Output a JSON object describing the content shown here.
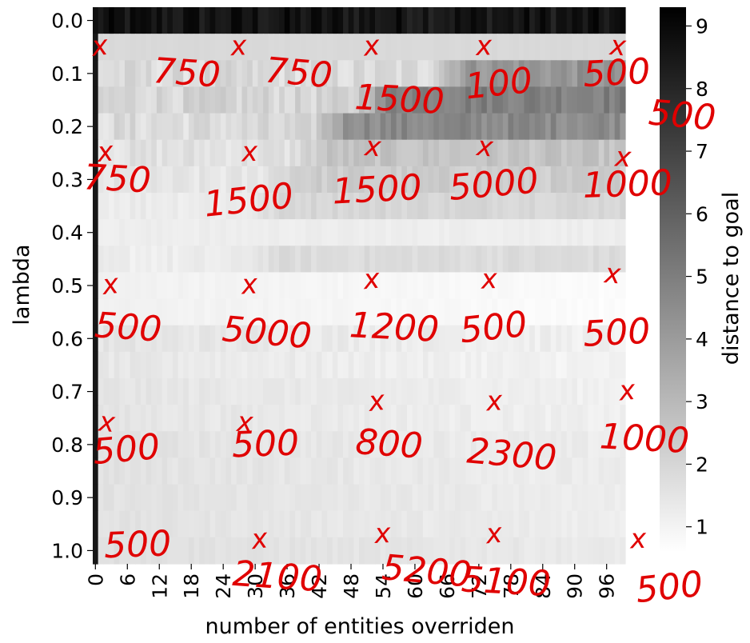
{
  "chart_data": {
    "type": "heatmap",
    "xlabel": "number of entities overriden",
    "ylabel": "lambda",
    "colorbar_label": "distance to goal",
    "colormap": "gray_r",
    "vmin": 0.6,
    "vmax": 9.3,
    "x_count": 100,
    "x_ticks": [
      "0",
      "6",
      "12",
      "18",
      "24",
      "30",
      "36",
      "42",
      "48",
      "54",
      "60",
      "66",
      "72",
      "78",
      "84",
      "90",
      "96"
    ],
    "y_rows": [
      "0.0",
      "0.1",
      "0.2",
      "0.3",
      "0.4",
      "0.5",
      "0.6",
      "0.7",
      "0.8",
      "0.9",
      "1.0"
    ],
    "colorbar_ticks": [
      1,
      2,
      3,
      4,
      5,
      6,
      7,
      8,
      9
    ],
    "row_profiles": [
      {
        "lambda": "0.0",
        "base": 8.6,
        "dark_from": 0,
        "dark_value": 8.6,
        "noise": 1.2
      },
      {
        "lambda": "0.05",
        "base": 1.9,
        "dark_from": 100,
        "dark_value": 1.9,
        "noise": 0.1
      },
      {
        "lambda": "0.1",
        "base": 1.8,
        "dark_from": 62,
        "dark_value": 4.2,
        "noise": 1.0
      },
      {
        "lambda": "0.15",
        "base": 2.0,
        "dark_from": 48,
        "dark_value": 5.0,
        "noise": 1.0
      },
      {
        "lambda": "0.2",
        "base": 1.8,
        "dark_from": 40,
        "dark_value": 4.6,
        "noise": 1.0
      },
      {
        "lambda": "0.25",
        "base": 1.6,
        "dark_from": 36,
        "dark_value": 2.6,
        "noise": 0.7
      },
      {
        "lambda": "0.3",
        "base": 1.4,
        "dark_from": 30,
        "dark_value": 2.3,
        "noise": 0.6
      },
      {
        "lambda": "0.35",
        "base": 1.3,
        "dark_from": 28,
        "dark_value": 2.0,
        "noise": 0.4
      },
      {
        "lambda": "0.4",
        "base": 1.2,
        "dark_from": 100,
        "dark_value": 1.2,
        "noise": 0.2
      },
      {
        "lambda": "0.45",
        "base": 1.2,
        "dark_from": 26,
        "dark_value": 1.8,
        "noise": 0.4
      },
      {
        "lambda": "0.5",
        "base": 1.1,
        "dark_from": 100,
        "dark_value": 1.1,
        "noise": 0.15
      },
      {
        "lambda": "0.55",
        "base": 1.1,
        "dark_from": 100,
        "dark_value": 1.1,
        "noise": 0.15
      },
      {
        "lambda": "0.6",
        "base": 1.5,
        "dark_from": 100,
        "dark_value": 1.5,
        "noise": 0.4
      },
      {
        "lambda": "0.65",
        "base": 1.4,
        "dark_from": 100,
        "dark_value": 1.4,
        "noise": 0.35
      },
      {
        "lambda": "0.7",
        "base": 1.5,
        "dark_from": 100,
        "dark_value": 1.5,
        "noise": 0.3
      },
      {
        "lambda": "0.75",
        "base": 1.5,
        "dark_from": 100,
        "dark_value": 1.5,
        "noise": 0.3
      },
      {
        "lambda": "0.8",
        "base": 1.6,
        "dark_from": 100,
        "dark_value": 1.6,
        "noise": 0.3
      },
      {
        "lambda": "0.85",
        "base": 1.6,
        "dark_from": 100,
        "dark_value": 1.6,
        "noise": 0.3
      },
      {
        "lambda": "0.9",
        "base": 1.6,
        "dark_from": 100,
        "dark_value": 1.6,
        "noise": 0.25
      },
      {
        "lambda": "0.95",
        "base": 1.6,
        "dark_from": 100,
        "dark_value": 1.6,
        "noise": 0.25
      },
      {
        "lambda": "1.0",
        "base": 1.7,
        "dark_from": 100,
        "dark_value": 1.7,
        "noise": 0.25
      }
    ],
    "first_column_dark_value": 8.5,
    "grid": false,
    "legend": "colorbar-right"
  },
  "annotations": {
    "color": "#e00000",
    "marks": [
      {
        "text": "x",
        "lambda": 0.05,
        "entity": 1
      },
      {
        "text": "750",
        "lambda": 0.1,
        "entity": 17
      },
      {
        "text": "x",
        "lambda": 0.05,
        "entity": 27
      },
      {
        "text": "750",
        "lambda": 0.1,
        "entity": 38
      },
      {
        "text": "x",
        "lambda": 0.05,
        "entity": 52
      },
      {
        "text": "1500",
        "lambda": 0.15,
        "entity": 57
      },
      {
        "text": "x",
        "lambda": 0.05,
        "entity": 73
      },
      {
        "text": "100",
        "lambda": 0.12,
        "entity": 76
      },
      {
        "text": "x",
        "lambda": 0.05,
        "entity": 98
      },
      {
        "text": "500",
        "lambda": 0.1,
        "entity": 98
      },
      {
        "text": "500",
        "lambda": 0.18,
        "entity": 110
      },
      {
        "text": "x",
        "lambda": 0.25,
        "entity": 2
      },
      {
        "text": "750",
        "lambda": 0.3,
        "entity": 4
      },
      {
        "text": "x",
        "lambda": 0.25,
        "entity": 29
      },
      {
        "text": "1500",
        "lambda": 0.34,
        "entity": 29
      },
      {
        "text": "x",
        "lambda": 0.24,
        "entity": 52
      },
      {
        "text": "1500",
        "lambda": 0.32,
        "entity": 53
      },
      {
        "text": "x",
        "lambda": 0.24,
        "entity": 73
      },
      {
        "text": "5000",
        "lambda": 0.31,
        "entity": 75
      },
      {
        "text": "x",
        "lambda": 0.26,
        "entity": 99
      },
      {
        "text": "1000",
        "lambda": 0.31,
        "entity": 100
      },
      {
        "text": "x",
        "lambda": 0.5,
        "entity": 3
      },
      {
        "text": "500",
        "lambda": 0.58,
        "entity": 6
      },
      {
        "text": "x",
        "lambda": 0.5,
        "entity": 29
      },
      {
        "text": "5000",
        "lambda": 0.59,
        "entity": 32
      },
      {
        "text": "x",
        "lambda": 0.49,
        "entity": 52
      },
      {
        "text": "1200",
        "lambda": 0.58,
        "entity": 56
      },
      {
        "text": "x",
        "lambda": 0.49,
        "entity": 74
      },
      {
        "text": "500",
        "lambda": 0.58,
        "entity": 75
      },
      {
        "text": "x",
        "lambda": 0.48,
        "entity": 97
      },
      {
        "text": "500",
        "lambda": 0.59,
        "entity": 98
      },
      {
        "text": "x",
        "lambda": 0.76,
        "entity": 2
      },
      {
        "text": "500",
        "lambda": 0.81,
        "entity": 6
      },
      {
        "text": "x",
        "lambda": 0.76,
        "entity": 28
      },
      {
        "text": "500",
        "lambda": 0.8,
        "entity": 32
      },
      {
        "text": "x",
        "lambda": 0.72,
        "entity": 53
      },
      {
        "text": "800",
        "lambda": 0.8,
        "entity": 55
      },
      {
        "text": "x",
        "lambda": 0.72,
        "entity": 75
      },
      {
        "text": "2300",
        "lambda": 0.82,
        "entity": 78
      },
      {
        "text": "x",
        "lambda": 0.7,
        "entity": 100
      },
      {
        "text": "1000",
        "lambda": 0.79,
        "entity": 103
      },
      {
        "text": "500",
        "lambda": 0.99,
        "entity": 8
      },
      {
        "text": "x",
        "lambda": 0.98,
        "entity": 31
      },
      {
        "text": "2100",
        "lambda": 1.05,
        "entity": 34
      },
      {
        "text": "x",
        "lambda": 0.97,
        "entity": 54
      },
      {
        "text": "5200",
        "lambda": 1.04,
        "entity": 62
      },
      {
        "text": "x",
        "lambda": 0.97,
        "entity": 75
      },
      {
        "text": "5100",
        "lambda": 1.06,
        "entity": 77
      },
      {
        "text": "x",
        "lambda": 0.98,
        "entity": 102
      },
      {
        "text": "500",
        "lambda": 1.07,
        "entity": 108
      }
    ]
  }
}
